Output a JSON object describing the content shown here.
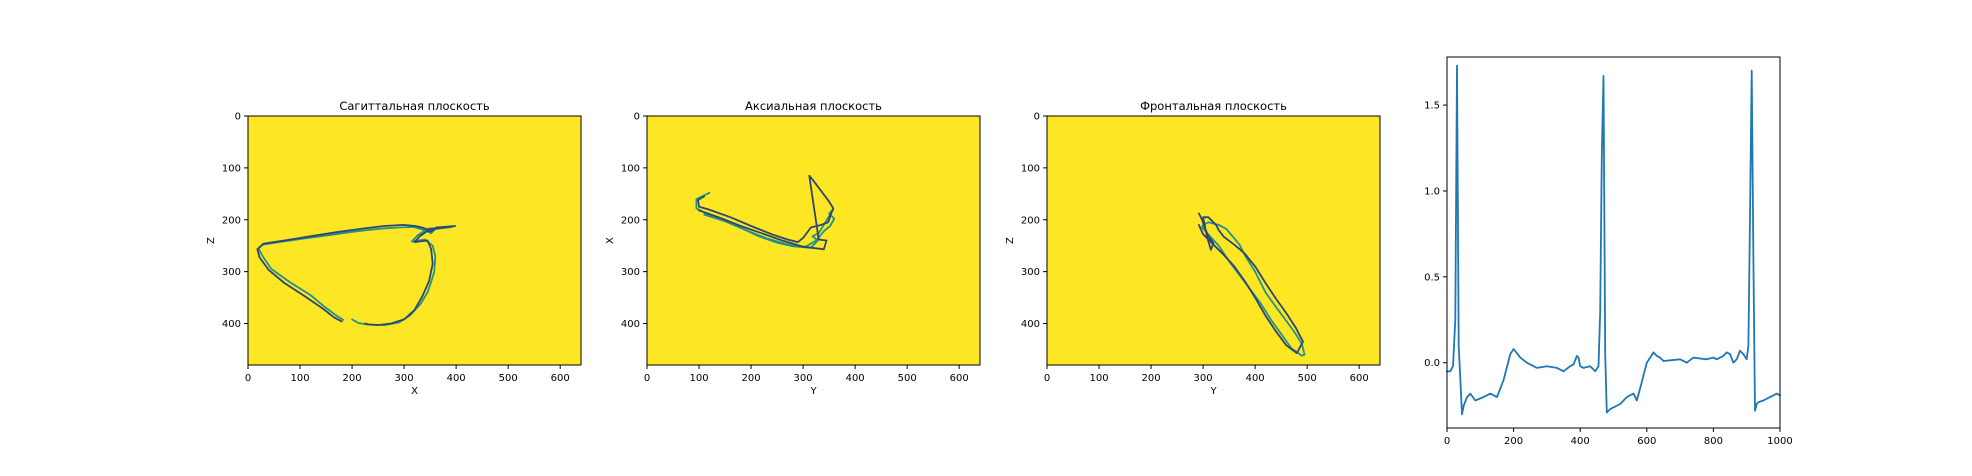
{
  "chart_data": [
    {
      "type": "line",
      "title": "Сагиттальная плоскость",
      "xlabel": "X",
      "ylabel": "Z",
      "xlim": [
        0,
        640
      ],
      "ylim": [
        480,
        0
      ],
      "y_inverted": true,
      "background_color": "#fde725",
      "xticks": [
        0,
        100,
        200,
        300,
        400,
        500,
        600
      ],
      "yticks": [
        0,
        100,
        200,
        300,
        400
      ],
      "series": [
        {
          "color": "#21918c",
          "x": [
            183,
            170,
            150,
            120,
            80,
            45,
            28,
            20,
            28,
            60,
            110,
            160,
            210,
            255,
            290,
            318,
            340,
            352,
            360,
            392,
            345,
            325,
            315,
            340,
            355,
            360,
            358,
            352,
            345,
            332,
            312,
            290,
            262,
            230,
            212,
            200
          ],
          "y": [
            393,
            385,
            370,
            345,
            320,
            295,
            270,
            255,
            248,
            243,
            236,
            229,
            222,
            217,
            215,
            214,
            220,
            226,
            218,
            214,
            217,
            231,
            242,
            238,
            250,
            270,
            300,
            320,
            340,
            362,
            384,
            398,
            403,
            402,
            399,
            392
          ]
        },
        {
          "color": "#30456d",
          "x": [
            180,
            165,
            145,
            110,
            70,
            40,
            22,
            18,
            30,
            70,
            120,
            170,
            220,
            262,
            298,
            322,
            338,
            350,
            362,
            398,
            350,
            330,
            320,
            345,
            352,
            355,
            348,
            335,
            320,
            300,
            275,
            250,
            232,
            225
          ],
          "y": [
            396,
            388,
            372,
            348,
            322,
            297,
            272,
            257,
            246,
            240,
            232,
            224,
            217,
            212,
            210,
            212,
            216,
            223,
            215,
            212,
            218,
            232,
            243,
            240,
            256,
            285,
            318,
            348,
            374,
            392,
            400,
            403,
            402,
            400
          ]
        }
      ]
    },
    {
      "type": "line",
      "title": "Аксиальная плоскость",
      "xlabel": "Y",
      "ylabel": "X",
      "xlim": [
        0,
        640
      ],
      "ylim": [
        480,
        0
      ],
      "y_inverted": true,
      "background_color": "#fde725",
      "xticks": [
        0,
        100,
        200,
        300,
        400,
        500,
        600
      ],
      "yticks": [
        0,
        100,
        200,
        300,
        400
      ],
      "series": [
        {
          "color": "#21918c",
          "x": [
            120,
            95,
            95,
            110,
            150,
            190,
            230,
            265,
            290,
            305,
            325,
            340,
            352,
            360,
            350,
            358,
            330,
            318,
            328,
            315,
            280,
            250,
            215,
            185,
            150,
            110
          ],
          "y": [
            148,
            160,
            178,
            186,
            202,
            220,
            236,
            246,
            252,
            252,
            240,
            222,
            212,
            198,
            188,
            180,
            226,
            232,
            240,
            254,
            251,
            244,
            232,
            218,
            203,
            190
          ]
        },
        {
          "color": "#30456d",
          "x": [
            110,
            98,
            100,
            118,
            160,
            200,
            240,
            270,
            290,
            300,
            315,
            335,
            348,
            355,
            358,
            350,
            335,
            320,
            312,
            330,
            345,
            340,
            300,
            260,
            220,
            180,
            140,
            100
          ],
          "y": [
            155,
            162,
            175,
            180,
            195,
            212,
            228,
            238,
            243,
            235,
            215,
            210,
            205,
            185,
            178,
            165,
            145,
            125,
            115,
            238,
            240,
            257,
            252,
            240,
            226,
            212,
            196,
            182
          ]
        }
      ]
    },
    {
      "type": "line",
      "title": "Фронтальная плоскость",
      "xlabel": "Y",
      "ylabel": "Z",
      "xlim": [
        0,
        640
      ],
      "ylim": [
        480,
        0
      ],
      "y_inverted": true,
      "background_color": "#fde725",
      "xticks": [
        0,
        100,
        200,
        300,
        400,
        500,
        600
      ],
      "yticks": [
        0,
        100,
        200,
        300,
        400
      ],
      "series": [
        {
          "color": "#21918c",
          "x": [
            298,
            300,
            310,
            330,
            345,
            355,
            370,
            380,
            400,
            420,
            440,
            460,
            478,
            490,
            495,
            490,
            470,
            450,
            430,
            410,
            380,
            350,
            330,
            310,
            298
          ],
          "y": [
            215,
            210,
            205,
            210,
            218,
            230,
            248,
            268,
            300,
            340,
            368,
            395,
            420,
            440,
            460,
            462,
            448,
            420,
            392,
            360,
            320,
            280,
            250,
            228,
            215
          ]
        },
        {
          "color": "#30456d",
          "x": [
            292,
            298,
            302,
            306,
            310,
            320,
            315,
            308,
            300,
            310,
            325,
            330,
            340,
            360,
            380,
            400,
            420,
            440,
            460,
            478,
            492,
            480,
            460,
            440,
            420,
            400,
            380,
            360,
            340,
            320,
            300,
            292
          ],
          "y": [
            188,
            200,
            212,
            222,
            232,
            245,
            258,
            235,
            195,
            195,
            210,
            220,
            233,
            248,
            265,
            290,
            322,
            352,
            380,
            408,
            435,
            457,
            442,
            415,
            385,
            350,
            318,
            290,
            268,
            248,
            228,
            210
          ]
        }
      ]
    },
    {
      "type": "line",
      "title": "",
      "xlabel": "",
      "ylabel": "",
      "xlim": [
        0,
        1000
      ],
      "ylim": [
        -0.38,
        1.78
      ],
      "xticks": [
        0,
        200,
        400,
        600,
        800,
        1000
      ],
      "ytick_labels": [
        "0.0",
        "0.5",
        "1.0",
        "1.5"
      ],
      "yticks": [
        0.0,
        0.5,
        1.0,
        1.5
      ],
      "series": [
        {
          "color": "#1f77b4",
          "x": [
            0,
            10,
            18,
            25,
            30,
            35,
            45,
            50,
            60,
            70,
            85,
            110,
            130,
            150,
            170,
            190,
            200,
            220,
            240,
            270,
            300,
            330,
            350,
            370,
            380,
            390,
            395,
            400,
            410,
            430,
            445,
            455,
            460,
            465,
            470,
            475,
            480,
            485,
            490,
            520,
            540,
            560,
            570,
            580,
            600,
            620,
            630,
            640,
            650,
            700,
            720,
            740,
            780,
            800,
            810,
            830,
            840,
            850,
            860,
            870,
            880,
            890,
            900,
            905,
            910,
            915,
            920,
            925,
            930,
            935,
            950,
            970,
            980,
            990,
            1000
          ],
          "y": [
            -0.05,
            -0.05,
            -0.02,
            0.25,
            1.73,
            0.1,
            -0.3,
            -0.25,
            -0.2,
            -0.18,
            -0.22,
            -0.2,
            -0.18,
            -0.2,
            -0.1,
            0.05,
            0.08,
            0.03,
            0.0,
            -0.03,
            -0.02,
            -0.03,
            -0.05,
            -0.02,
            -0.01,
            0.04,
            0.03,
            -0.02,
            -0.03,
            -0.02,
            -0.05,
            -0.02,
            0.3,
            1.2,
            1.67,
            0.05,
            -0.29,
            -0.28,
            -0.27,
            -0.24,
            -0.2,
            -0.18,
            -0.22,
            -0.15,
            0.0,
            0.06,
            0.04,
            0.03,
            0.01,
            0.02,
            0.0,
            0.03,
            0.02,
            0.03,
            0.02,
            0.04,
            0.06,
            0.05,
            0.0,
            0.02,
            0.07,
            0.05,
            0.02,
            0.1,
            0.85,
            1.7,
            0.6,
            -0.28,
            -0.24,
            -0.23,
            -0.22,
            -0.2,
            -0.19,
            -0.18,
            -0.19
          ]
        }
      ]
    }
  ]
}
